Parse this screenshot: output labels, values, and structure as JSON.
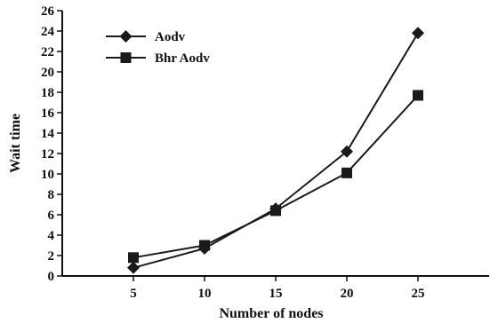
{
  "chart_data": {
    "type": "line",
    "xlabel": "Number of nodes",
    "ylabel": "Wait time",
    "x": [
      5,
      10,
      15,
      20,
      25
    ],
    "xlim": [
      0,
      30
    ],
    "ylim": [
      0,
      26
    ],
    "yticks": [
      0,
      2,
      4,
      6,
      8,
      10,
      12,
      14,
      16,
      18,
      20,
      22,
      24,
      26
    ],
    "grid": false,
    "legend_position": "top-left",
    "series": [
      {
        "name": "Aodv",
        "marker": "diamond",
        "color": "#1a1a1a",
        "values": [
          0.8,
          2.7,
          6.6,
          12.2,
          23.8
        ]
      },
      {
        "name": "Bhr Aodv",
        "marker": "square",
        "color": "#1a1a1a",
        "values": [
          1.8,
          3.0,
          6.4,
          10.1,
          17.7
        ]
      }
    ]
  }
}
